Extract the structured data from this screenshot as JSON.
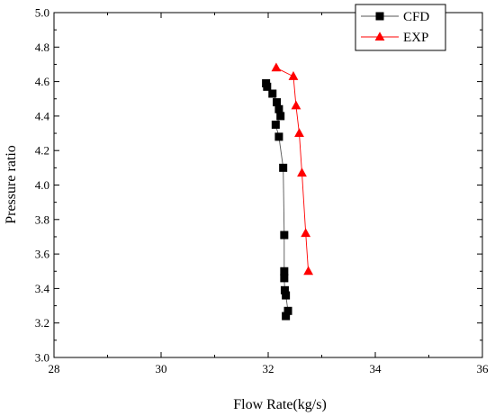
{
  "chart_data": {
    "type": "scatter",
    "xlabel": "Flow Rate(kg/s)",
    "ylabel": "Pressure ratio",
    "xlim": [
      28,
      36
    ],
    "ylim": [
      3.0,
      5.0
    ],
    "xticks": [
      28,
      30,
      32,
      34,
      36
    ],
    "yticks": [
      3.0,
      3.2,
      3.4,
      3.6,
      3.8,
      4.0,
      4.2,
      4.4,
      4.6,
      4.8,
      5.0
    ],
    "x_tick_labels": [
      "28",
      "30",
      "32",
      "34",
      "36"
    ],
    "y_tick_labels": [
      "3.0",
      "3.2",
      "3.4",
      "3.6",
      "3.8",
      "4.0",
      "4.2",
      "4.4",
      "4.6",
      "4.8",
      "5.0"
    ],
    "legend_position": "top-right",
    "grid": false,
    "series": [
      {
        "name": "CFD",
        "marker": "square",
        "color": "#000000",
        "line_color": "#555555",
        "points": [
          [
            31.96,
            4.59
          ],
          [
            31.98,
            4.57
          ],
          [
            32.08,
            4.53
          ],
          [
            32.16,
            4.48
          ],
          [
            32.2,
            4.44
          ],
          [
            32.23,
            4.4
          ],
          [
            32.14,
            4.35
          ],
          [
            32.2,
            4.28
          ],
          [
            32.28,
            4.1
          ],
          [
            32.3,
            3.71
          ],
          [
            32.3,
            3.5
          ],
          [
            32.3,
            3.46
          ],
          [
            32.31,
            3.39
          ],
          [
            32.33,
            3.36
          ],
          [
            32.37,
            3.27
          ],
          [
            32.33,
            3.24
          ]
        ]
      },
      {
        "name": "EXP",
        "marker": "triangle",
        "color": "#ff0000",
        "line_color": "#ff0000",
        "points": [
          [
            32.15,
            4.68
          ],
          [
            32.47,
            4.63
          ],
          [
            32.52,
            4.46
          ],
          [
            32.58,
            4.3
          ],
          [
            32.63,
            4.07
          ],
          [
            32.7,
            3.72
          ],
          [
            32.75,
            3.5
          ]
        ]
      }
    ]
  }
}
